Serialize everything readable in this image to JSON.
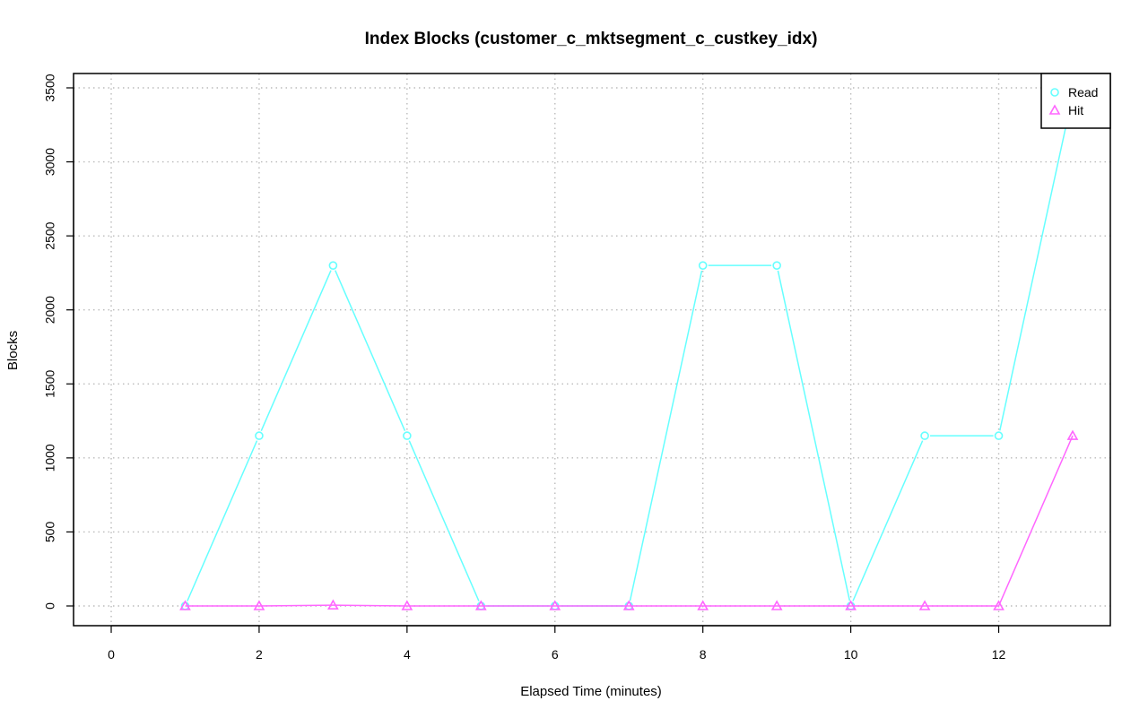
{
  "chart_data": {
    "type": "line",
    "title": "Index Blocks (customer_c_mktsegment_c_custkey_idx)",
    "xlabel": "Elapsed Time (minutes)",
    "ylabel": "Blocks",
    "xlim": [
      0,
      13
    ],
    "ylim": [
      0,
      3500
    ],
    "x_ticks": [
      0,
      2,
      4,
      6,
      8,
      10,
      12
    ],
    "y_ticks": [
      0,
      500,
      1000,
      1500,
      2000,
      2500,
      3000,
      3500
    ],
    "grid": true,
    "legend_position": "top-right",
    "x": [
      1,
      2,
      3,
      4,
      5,
      6,
      7,
      8,
      9,
      10,
      11,
      12,
      13
    ],
    "series": [
      {
        "name": "Read",
        "color": "#66ffff",
        "marker": "circle",
        "values": [
          0,
          1150,
          2300,
          1150,
          0,
          0,
          0,
          2300,
          2300,
          0,
          1150,
          1150,
          3450
        ]
      },
      {
        "name": "Hit",
        "color": "#ff66ff",
        "marker": "triangle",
        "values": [
          0,
          0,
          5,
          0,
          0,
          0,
          0,
          0,
          0,
          0,
          0,
          0,
          1150
        ]
      }
    ]
  }
}
